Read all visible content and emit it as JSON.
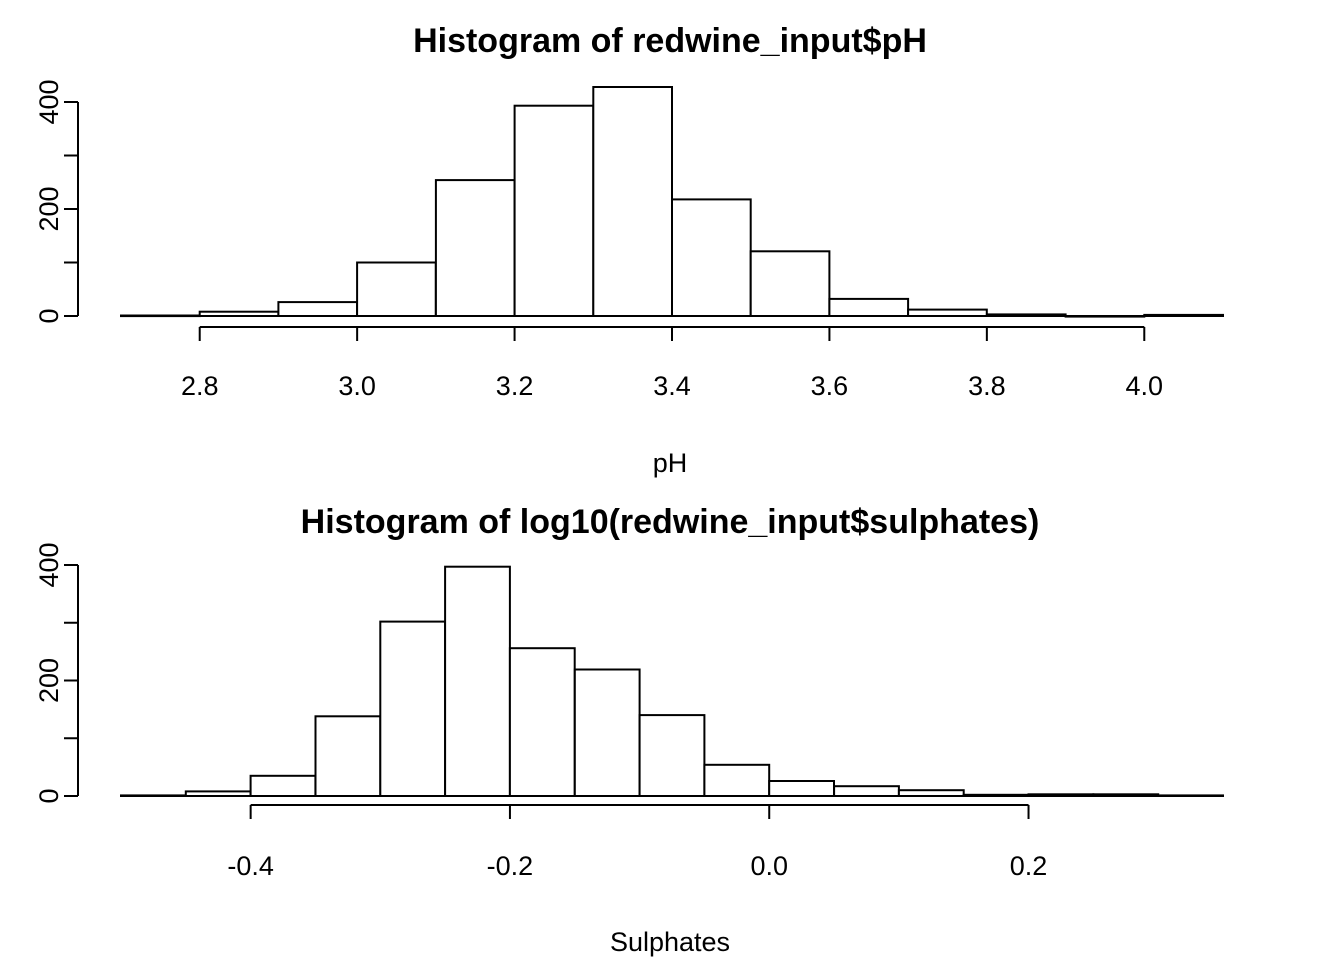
{
  "chart_data": [
    {
      "type": "bar",
      "title": "Histogram of redwine_input$pH",
      "xlabel": "pH",
      "ylabel": "",
      "xlim": [
        2.7,
        4.1
      ],
      "ylim": [
        0,
        430
      ],
      "bin_edges": [
        2.7,
        2.8,
        2.9,
        3.0,
        3.1,
        3.2,
        3.3,
        3.4,
        3.5,
        3.6,
        3.7,
        3.8,
        3.9,
        4.0,
        4.1
      ],
      "values": [
        1,
        8,
        26,
        100,
        254,
        393,
        428,
        218,
        121,
        32,
        12,
        3,
        0,
        2
      ],
      "xticks": [
        "2.8",
        "3.0",
        "3.2",
        "3.4",
        "3.6",
        "3.8",
        "4.0"
      ],
      "xtick_values": [
        2.8,
        3.0,
        3.2,
        3.4,
        3.6,
        3.8,
        4.0
      ],
      "yticks": [
        "0",
        "200",
        "400"
      ],
      "ytick_values": [
        0,
        200,
        400
      ],
      "yticks_minor": [
        100,
        300
      ],
      "grid": false
    },
    {
      "type": "bar",
      "title": "Histogram of log10(redwine_input$sulphates)",
      "xlabel": "Sulphates",
      "ylabel": "",
      "xlim": [
        -0.5,
        0.35
      ],
      "ylim": [
        0,
        400
      ],
      "bin_edges": [
        -0.5,
        -0.45,
        -0.4,
        -0.35,
        -0.3,
        -0.25,
        -0.2,
        -0.15,
        -0.1,
        -0.05,
        0.0,
        0.05,
        0.1,
        0.15,
        0.2,
        0.25,
        0.3,
        0.35
      ],
      "values": [
        1,
        8,
        35,
        138,
        302,
        397,
        256,
        219,
        140,
        54,
        26,
        17,
        10,
        2,
        3,
        3,
        1
      ],
      "xticks": [
        "-0.4",
        "-0.2",
        "0.0",
        "0.2"
      ],
      "xtick_values": [
        -0.4,
        -0.2,
        0.0,
        0.2
      ],
      "yticks": [
        "0",
        "200",
        "400"
      ],
      "ytick_values": [
        0,
        200,
        400
      ],
      "yticks_minor": [
        100,
        300
      ],
      "grid": false
    }
  ]
}
